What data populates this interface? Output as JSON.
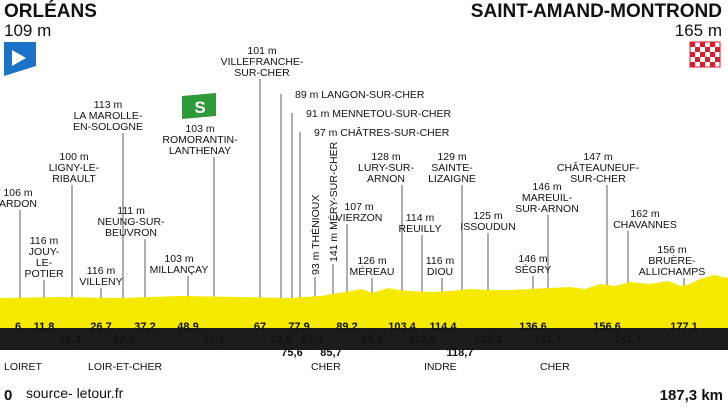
{
  "start": {
    "name": "ORLÉANS",
    "alt": "109 m"
  },
  "finish": {
    "name": "SAINT-AMAND-MONTROND",
    "alt": "165 m"
  },
  "sprint_label": "S",
  "points": [
    {
      "id": "ardon",
      "km": "6",
      "label": [
        "106 m",
        "ARDON"
      ]
    },
    {
      "id": "jouy",
      "km": "11,8",
      "label": [
        "116 m",
        "JOUY-",
        "LE-",
        "POTIER"
      ]
    },
    {
      "id": "ligny",
      "km": "19,3",
      "label": [
        "100 m",
        "LIGNY-LE-",
        "RIBAULT"
      ]
    },
    {
      "id": "villeny",
      "km": "26,7",
      "label": [
        "116 m",
        "VILLENY"
      ]
    },
    {
      "id": "marolle",
      "km": "32,2",
      "label": [
        "113 m",
        "LA MAROLLE-",
        "EN-SOLOGNE"
      ]
    },
    {
      "id": "neung",
      "km": "37,2",
      "label": [
        "111 m",
        "NEUNG-SUR-",
        "BEUVRON"
      ]
    },
    {
      "id": "millancay",
      "km": "48,9",
      "label": [
        "103 m",
        "MILLANÇAY"
      ]
    },
    {
      "id": "romorantin",
      "km": "57,1",
      "label": [
        "103 m",
        "ROMORANTIN-",
        "LANTHENAY"
      ]
    },
    {
      "id": "villefranche",
      "km": "67",
      "label": [
        "101 m",
        "VILLEFRANCHE-",
        "SUR-CHER"
      ]
    },
    {
      "id": "langon",
      "km": "72,6",
      "label": [
        "89 m LANGON-SUR-CHER"
      ]
    },
    {
      "id": "mennetou",
      "km": "75,6",
      "label": [
        "91 m MENNETOU-SUR-CHER"
      ]
    },
    {
      "id": "chatres",
      "km": "77,9",
      "label": [
        "97 m CHÂTRES-SUR-CHER"
      ]
    },
    {
      "id": "thenioux",
      "km": "81,3",
      "label": [
        "93 m THÉNIOUX"
      ]
    },
    {
      "id": "mery",
      "km": "85,7",
      "label": [
        "141 m MÉRY-SUR-CHER"
      ]
    },
    {
      "id": "vierzon",
      "km": "89,2",
      "label": [
        "107 m",
        "VIERZON"
      ]
    },
    {
      "id": "mereau",
      "km": "95,6",
      "label": [
        "126 m",
        "MÉREAU"
      ]
    },
    {
      "id": "lury",
      "km": "103,4",
      "label": [
        "128 m",
        "LURY-SUR-",
        "ARNON"
      ]
    },
    {
      "id": "reuilly",
      "km": "110,3",
      "label": [
        "114 m",
        "REUILLY"
      ]
    },
    {
      "id": "diou",
      "km": "114,4",
      "label": [
        "116 m",
        "DIOU"
      ]
    },
    {
      "id": "lizaigne",
      "km": "118,7",
      "label": [
        "129 m",
        "SAINTE-",
        "LIZAIGNE"
      ]
    },
    {
      "id": "issoudun",
      "km": "125,3",
      "label": [
        "125 m",
        "ISSOUDUN"
      ]
    },
    {
      "id": "segry",
      "km": "136,6",
      "label": [
        "146 m",
        "SÉGRY"
      ]
    },
    {
      "id": "mareuil",
      "km": "141,7",
      "label": [
        "146 m",
        "MAREUIL-",
        "SUR-ARNON"
      ]
    },
    {
      "id": "chateauneuf",
      "km": "156,6",
      "label": [
        "147 m",
        "CHÂTEAUNEUF-",
        "SUR-CHER"
      ]
    },
    {
      "id": "chavannes",
      "km": "161,7",
      "label": [
        "162 m",
        "CHAVANNES"
      ]
    },
    {
      "id": "bruere",
      "km": "177,1",
      "label": [
        "156 m",
        "BRUÈRE-",
        "ALLICHAMPS"
      ]
    }
  ],
  "departments": [
    "LOIRET",
    "LOIR-ET-CHER",
    "CHER",
    "INDRE",
    "CHER"
  ],
  "footer": {
    "zero": "0",
    "source": "source- letour.fr",
    "total": "187,3 km"
  },
  "colors": {
    "start_flag": "#1a73c9",
    "sprint": "#2f9a3a",
    "finish_flag": "#d81e2c",
    "band": "#f5e900",
    "strip": "#1c1c1c"
  }
}
